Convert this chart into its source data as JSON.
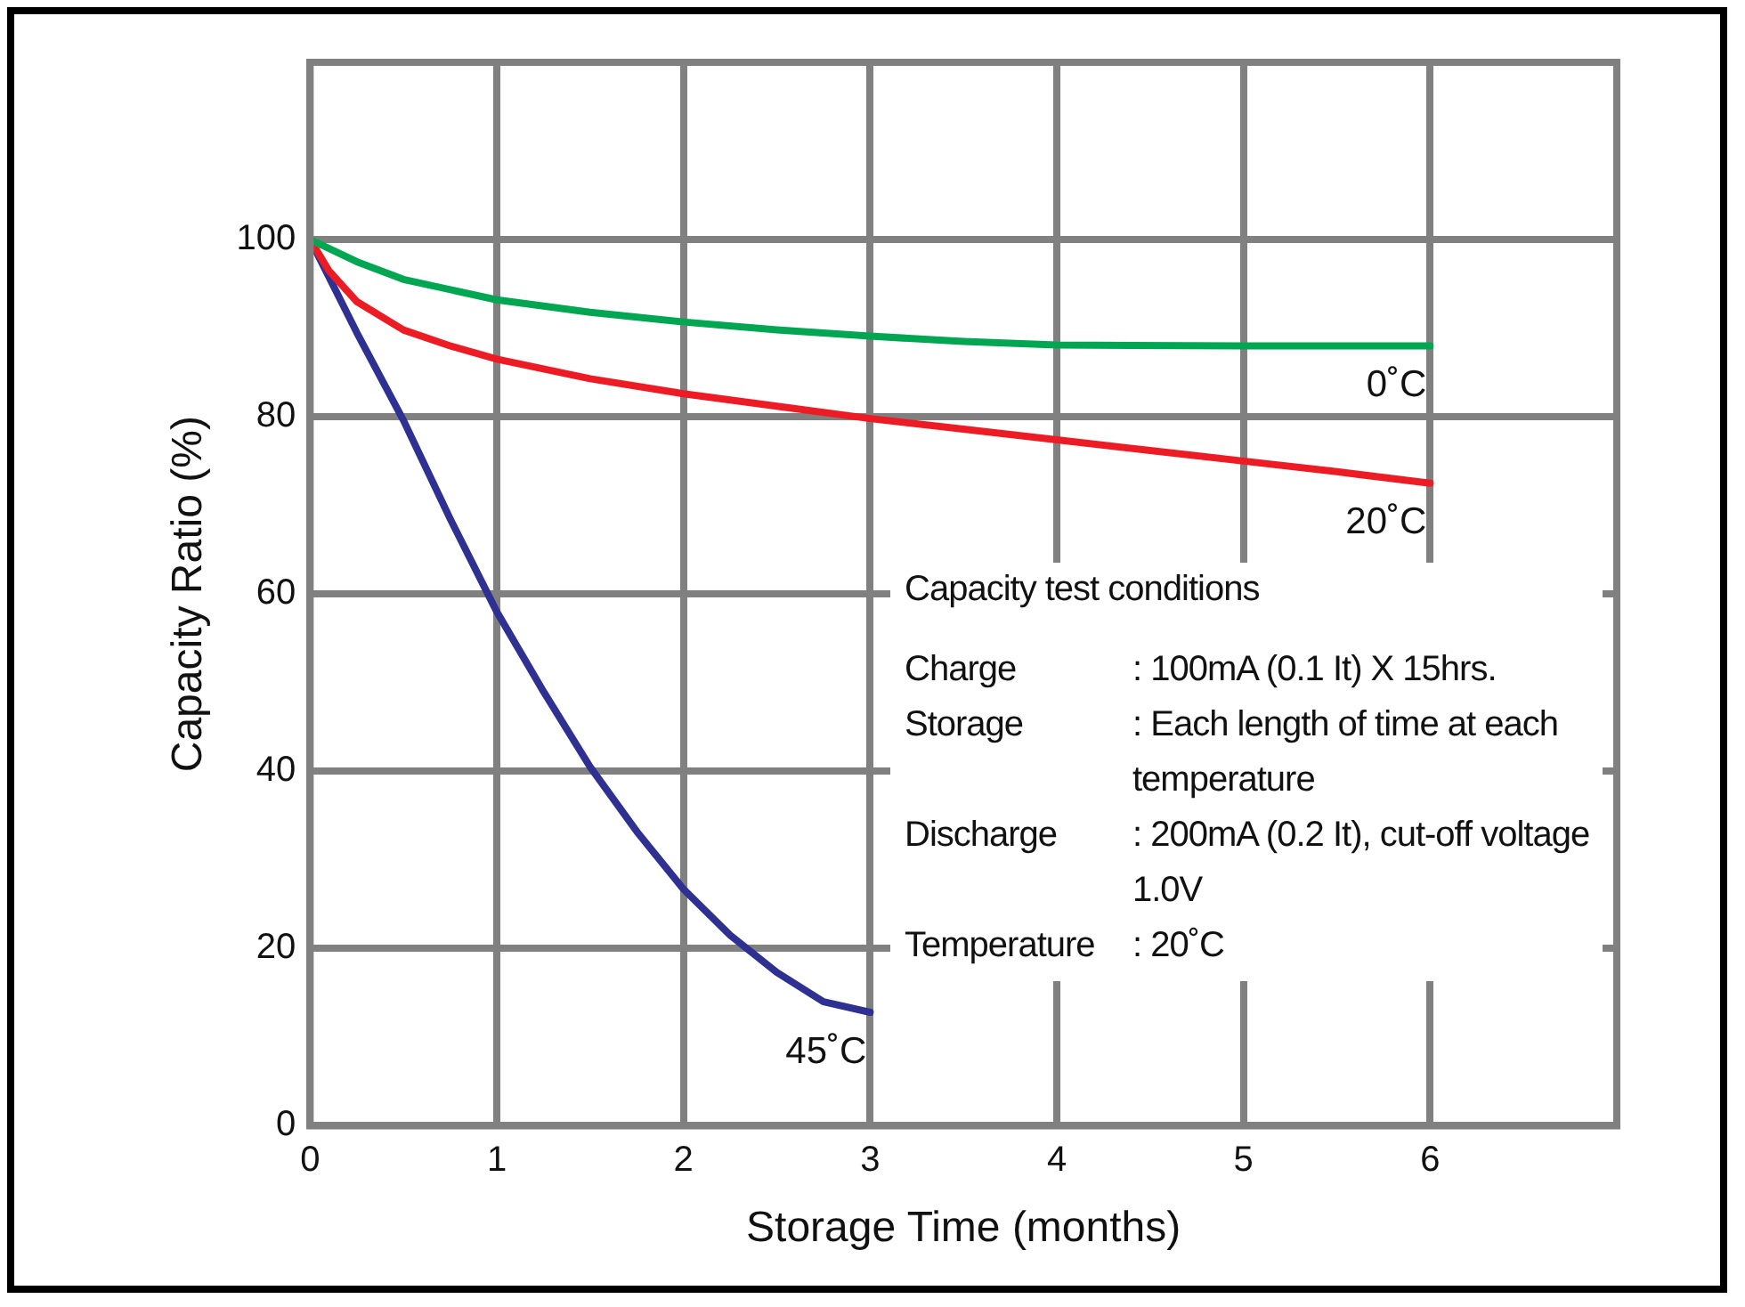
{
  "chart_data": {
    "type": "line",
    "xlabel": "Storage Time (months)",
    "ylabel": "Capacity Ratio (%)",
    "xlim": [
      0,
      7
    ],
    "xticks": [
      0,
      1,
      2,
      3,
      4,
      5,
      6,
      {
        "value": 7,
        "label": null
      }
    ],
    "ylim": [
      0,
      120
    ],
    "yticks": [
      0,
      20,
      40,
      60,
      80,
      100,
      {
        "value": 120,
        "label": null
      }
    ],
    "grid": true,
    "legend": false,
    "marker": "none",
    "line_style": "solid",
    "series": [
      {
        "name": "0˚C",
        "color": "#00a651",
        "x": [
          0,
          0.25,
          0.5,
          1,
          1.5,
          2,
          2.5,
          3,
          3.5,
          4,
          5,
          6
        ],
        "values": [
          100,
          97.5,
          95.5,
          93.2,
          91.8,
          90.7,
          89.8,
          89.1,
          88.5,
          88.1,
          88,
          88
        ]
      },
      {
        "name": "20˚C",
        "color": "#ed1c24",
        "x": [
          0,
          0.1,
          0.25,
          0.5,
          0.75,
          1,
          1.5,
          2,
          2.5,
          3,
          3.5,
          4,
          4.5,
          5,
          5.5,
          6
        ],
        "values": [
          100,
          96.5,
          93,
          89.8,
          88,
          86.5,
          84.3,
          82.6,
          81.2,
          79.8,
          78.6,
          77.4,
          76.2,
          75,
          73.8,
          72.5
        ]
      },
      {
        "name": "45˚C",
        "color": "#2e3192",
        "x": [
          0,
          0.25,
          0.5,
          0.75,
          1,
          1.25,
          1.5,
          1.75,
          2,
          2.25,
          2.5,
          2.75,
          3
        ],
        "values": [
          100,
          89.5,
          79.6,
          68.5,
          58,
          49,
          40.5,
          33.2,
          26.7,
          21.5,
          17.3,
          14,
          12.8
        ]
      }
    ],
    "annotations": [
      "Capacity test conditions",
      "Charge : 100mA (0.1 It) X 15hrs.",
      "Storage : Each length of time at each temperature",
      "Discharge : 200mA (0.2 It), cut-off voltage 1.0V",
      "Temperature : 20˚C"
    ]
  }
}
